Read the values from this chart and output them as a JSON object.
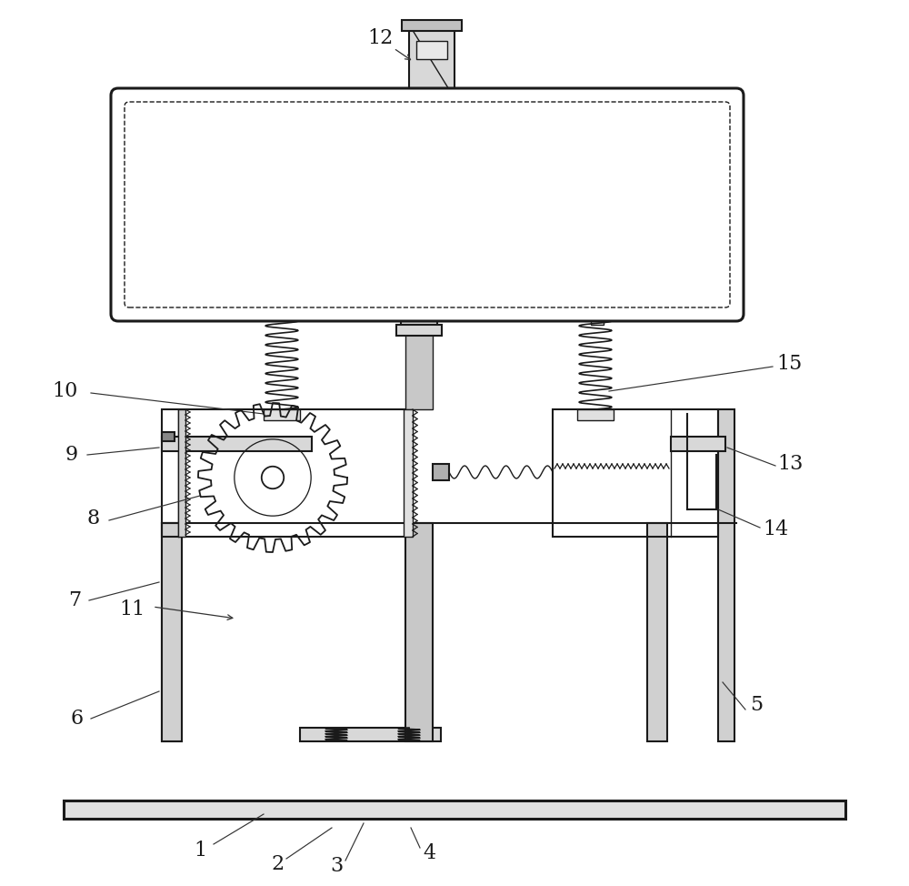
{
  "bg_color": "#ffffff",
  "line_color": "#1a1a1a",
  "lw_thin": 1.0,
  "lw_med": 1.5,
  "lw_thick": 2.2,
  "fig_width": 10.0,
  "fig_height": 9.74
}
